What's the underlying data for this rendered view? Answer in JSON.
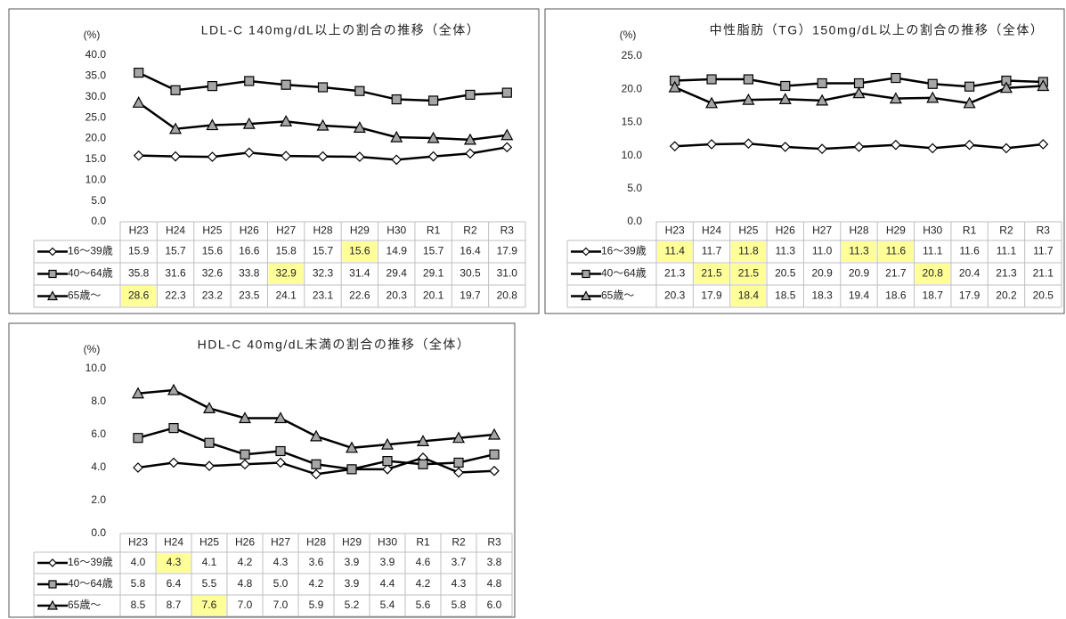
{
  "chart_data": [
    {
      "type": "line",
      "title": "LDL-C 140mg/dL以上の割合の推移（全体）",
      "unit": "(%)",
      "categories": [
        "H23",
        "H24",
        "H25",
        "H26",
        "H27",
        "H28",
        "H29",
        "H30",
        "R1",
        "R2",
        "R3"
      ],
      "ylim": [
        0,
        40
      ],
      "yticks": [
        {
          "value": 0,
          "label": "0.0"
        },
        {
          "value": 5,
          "label": "5.0"
        },
        {
          "value": 10,
          "label": "10.0"
        },
        {
          "value": 15,
          "label": "15.0"
        },
        {
          "value": 20,
          "label": "20.0"
        },
        {
          "value": 25,
          "label": "25.0"
        },
        {
          "value": 30,
          "label": "30.0"
        },
        {
          "value": 35,
          "label": "35.0"
        },
        {
          "value": 40,
          "label": "40.0"
        }
      ],
      "series": [
        {
          "name": "16～39歳",
          "color": "#000000",
          "marker": "diamond",
          "values": [
            15.9,
            15.7,
            15.6,
            16.6,
            15.8,
            15.7,
            15.6,
            14.9,
            15.7,
            16.4,
            17.9
          ],
          "highlight": [
            6
          ]
        },
        {
          "name": "40～64歳",
          "color": "#000000",
          "marker": "square",
          "values": [
            35.8,
            31.6,
            32.6,
            33.8,
            32.9,
            32.3,
            31.4,
            29.4,
            29.1,
            30.5,
            31
          ],
          "value_labels": [
            "35.8",
            "31.6",
            "32.6",
            "33.8",
            "32.9",
            "32.3",
            "31.4",
            "29.4",
            "29.1",
            "30.5",
            "31.0"
          ],
          "highlight": [
            4
          ]
        },
        {
          "name": "65歳～",
          "color": "#000000",
          "marker": "triangle",
          "values": [
            28.6,
            22.3,
            23.2,
            23.5,
            24.1,
            23.1,
            22.6,
            20.3,
            20.1,
            19.7,
            20.8
          ],
          "highlight": [
            0
          ]
        }
      ]
    },
    {
      "type": "line",
      "title": "中性脂肪（TG）150mg/dL以上の割合の推移（全体）",
      "unit": "(%)",
      "categories": [
        "H23",
        "H24",
        "H25",
        "H26",
        "H27",
        "H28",
        "H29",
        "H30",
        "R1",
        "R2",
        "R3"
      ],
      "ylim": [
        0,
        25
      ],
      "yticks": [
        {
          "value": 0,
          "label": "0.0"
        },
        {
          "value": 5,
          "label": "5.0"
        },
        {
          "value": 10,
          "label": "10.0"
        },
        {
          "value": 15,
          "label": "15.0"
        },
        {
          "value": 20,
          "label": "20.0"
        },
        {
          "value": 25,
          "label": "25.0"
        }
      ],
      "series": [
        {
          "name": "16～39歳",
          "color": "#000000",
          "marker": "diamond",
          "values": [
            11.4,
            11.7,
            11.8,
            11.3,
            11,
            11.3,
            11.6,
            11.1,
            11.6,
            11.1,
            11.7
          ],
          "value_labels": [
            "11.4",
            "11.7",
            "11.8",
            "11.3",
            "11.0",
            "11.3",
            "11.6",
            "11.1",
            "11.6",
            "11.1",
            "11.7"
          ],
          "highlight": [
            0,
            2,
            5,
            6
          ]
        },
        {
          "name": "40～64歳",
          "color": "#000000",
          "marker": "square",
          "values": [
            21.3,
            21.5,
            21.5,
            20.5,
            20.9,
            20.9,
            21.7,
            20.8,
            20.4,
            21.3,
            21.1
          ],
          "highlight": [
            1,
            2,
            7
          ]
        },
        {
          "name": "65歳～",
          "color": "#000000",
          "marker": "triangle",
          "values": [
            20.3,
            17.9,
            18.4,
            18.5,
            18.3,
            19.4,
            18.6,
            18.7,
            17.9,
            20.2,
            20.5
          ],
          "highlight": [
            2
          ]
        }
      ]
    },
    {
      "type": "line",
      "title": "HDL-C 40mg/dL未満の割合の推移（全体）",
      "unit": "(%)",
      "categories": [
        "H23",
        "H24",
        "H25",
        "H26",
        "H27",
        "H28",
        "H29",
        "H30",
        "R1",
        "R2",
        "R3"
      ],
      "ylim": [
        0,
        10
      ],
      "yticks": [
        {
          "value": 0,
          "label": "0.0"
        },
        {
          "value": 2,
          "label": "2.0"
        },
        {
          "value": 4,
          "label": "4.0"
        },
        {
          "value": 6,
          "label": "6.0"
        },
        {
          "value": 8,
          "label": "8.0"
        },
        {
          "value": 10,
          "label": "10.0"
        }
      ],
      "series": [
        {
          "name": "16～39歳",
          "color": "#000000",
          "marker": "diamond",
          "values": [
            4,
            4.3,
            4.1,
            4.2,
            4.3,
            3.6,
            3.9,
            3.9,
            4.6,
            3.7,
            3.8
          ],
          "value_labels": [
            "4.0",
            "4.3",
            "4.1",
            "4.2",
            "4.3",
            "3.6",
            "3.9",
            "3.9",
            "4.6",
            "3.7",
            "3.8"
          ],
          "highlight": [
            1
          ]
        },
        {
          "name": "40～64歳",
          "color": "#000000",
          "marker": "square",
          "values": [
            5.8,
            6.4,
            5.5,
            4.8,
            5,
            4.2,
            3.9,
            4.4,
            4.2,
            4.3,
            4.8
          ],
          "value_labels": [
            "5.8",
            "6.4",
            "5.5",
            "4.8",
            "5.0",
            "4.2",
            "3.9",
            "4.4",
            "4.2",
            "4.3",
            "4.8"
          ]
        },
        {
          "name": "65歳～",
          "color": "#000000",
          "marker": "triangle",
          "values": [
            8.5,
            8.7,
            7.6,
            7,
            7,
            5.9,
            5.2,
            5.4,
            5.6,
            5.8,
            6
          ],
          "value_labels": [
            "8.5",
            "8.7",
            "7.6",
            "7.0",
            "7.0",
            "5.9",
            "5.2",
            "5.4",
            "5.6",
            "5.8",
            "6.0"
          ],
          "highlight": [
            2
          ]
        }
      ]
    }
  ]
}
